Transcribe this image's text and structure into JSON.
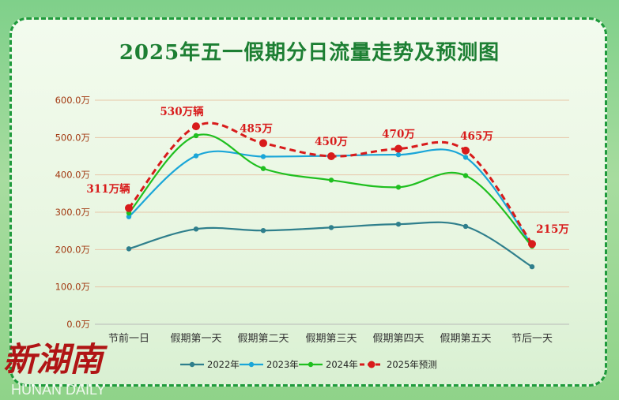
{
  "chart_data": {
    "type": "line",
    "title": "2025年五一假期分日流量走势及预测图",
    "categories": [
      "节前一日",
      "假期第一天",
      "假期第二天",
      "假期第三天",
      "假期第四天",
      "假期第五天",
      "节后一天"
    ],
    "yticks": [
      "0.0万",
      "100.0万",
      "200.0万",
      "300.0万",
      "400.0万",
      "500.0万",
      "600.0万"
    ],
    "ylim": [
      0,
      600
    ],
    "grid": true,
    "legend_position": "bottom",
    "series": [
      {
        "name": "2022年",
        "values": [
          202,
          255,
          251,
          259,
          268,
          262,
          154
        ],
        "color": "#2f7f8c",
        "dashed": false
      },
      {
        "name": "2023年",
        "values": [
          288,
          451,
          449,
          451,
          454,
          447,
          212
        ],
        "color": "#1aa6d8",
        "dashed": false
      },
      {
        "name": "2024年",
        "values": [
          298,
          505,
          417,
          386,
          367,
          398,
          209
        ],
        "color": "#1fbf1f",
        "dashed": false
      },
      {
        "name": "2025年预测",
        "values": [
          311,
          530,
          485,
          450,
          470,
          465,
          215
        ],
        "color": "#d81b1b",
        "dashed": true
      }
    ],
    "data_labels": [
      "311万辆",
      "530万辆",
      "485万",
      "450万",
      "470万",
      "465万",
      "215万"
    ]
  },
  "watermark": {
    "text": "新湖南",
    "subtext": "HUNAN DAILY"
  }
}
